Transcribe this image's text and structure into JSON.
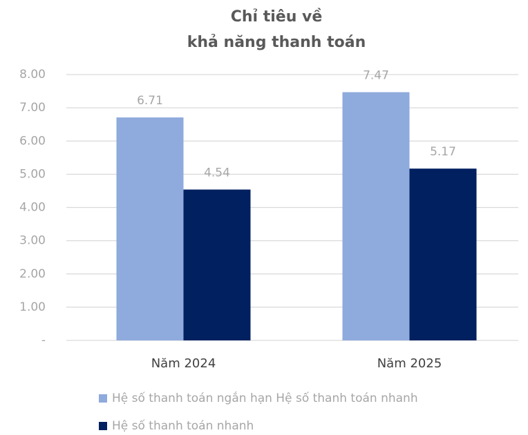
{
  "chart_data": {
    "type": "bar",
    "title": [
      "Chỉ tiêu về",
      "khả năng thanh toán"
    ],
    "categories": [
      "Năm 2024",
      "Năm 2025"
    ],
    "series": [
      {
        "name": "Hệ số thanh toán ngắn hạn Hệ số thanh toán nhanh",
        "color": "#8faadc",
        "values": [
          6.71,
          7.47
        ]
      },
      {
        "name": "Hệ số thanh toán nhanh",
        "color": "#002060",
        "values": [
          4.54,
          5.17
        ]
      }
    ],
    "ylim": [
      0,
      8
    ],
    "yticks": [
      {
        "value": 0,
        "label": "-"
      },
      {
        "value": 1,
        "label": "1.00"
      },
      {
        "value": 2,
        "label": "2.00"
      },
      {
        "value": 3,
        "label": "3.00"
      },
      {
        "value": 4,
        "label": "4.00"
      },
      {
        "value": 5,
        "label": "5.00"
      },
      {
        "value": 6,
        "label": "6.00"
      },
      {
        "value": 7,
        "label": "7.00"
      },
      {
        "value": 8,
        "label": "8.00"
      }
    ],
    "grid": true,
    "legend": "bottom"
  }
}
